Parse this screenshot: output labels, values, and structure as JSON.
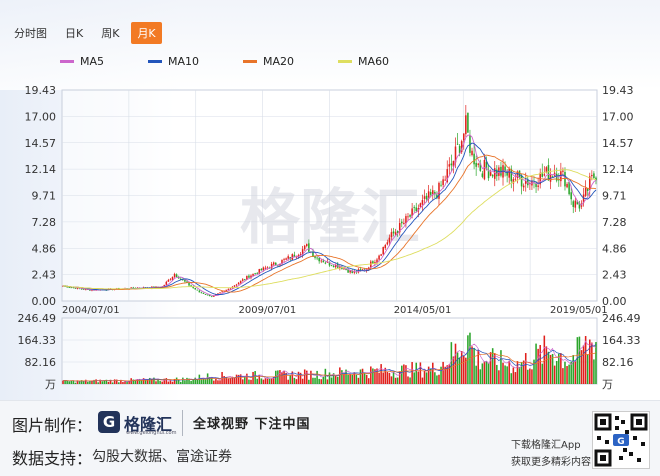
{
  "tabs": [
    {
      "label": "分时图",
      "active": false
    },
    {
      "label": "日K",
      "active": false
    },
    {
      "label": "周K",
      "active": false
    },
    {
      "label": "月K",
      "active": true
    }
  ],
  "legend": [
    {
      "label": "MA5",
      "color": "#cc66cc"
    },
    {
      "label": "MA10",
      "color": "#2255bb"
    },
    {
      "label": "MA20",
      "color": "#e8742a"
    },
    {
      "label": "MA60",
      "color": "#dede60"
    }
  ],
  "colors": {
    "up": "#e0201c",
    "down": "#2aa52a",
    "grid": "#d8dee8"
  },
  "watermark": "格隆汇",
  "chart_data": {
    "type": "candlestick",
    "price_axis": {
      "ticks": [
        "19.43",
        "17.00",
        "14.57",
        "12.14",
        "9.71",
        "7.28",
        "4.86",
        "2.43",
        "0.00"
      ],
      "ylim": [
        0,
        19.43
      ]
    },
    "volume_axis": {
      "ticks": [
        "246.49",
        "164.33",
        "82.16",
        "万"
      ],
      "ylim": [
        0,
        246.49
      ],
      "unit": "万"
    },
    "x_ticks": [
      "2004/07/01",
      "2009/07/01",
      "2014/05/01",
      "2019/05/01"
    ],
    "close_anchors": [
      [
        0,
        1.4
      ],
      [
        12,
        1.0
      ],
      [
        24,
        1.1
      ],
      [
        36,
        1.2
      ],
      [
        48,
        1.3
      ],
      [
        54,
        2.5
      ],
      [
        60,
        1.6
      ],
      [
        66,
        0.8
      ],
      [
        72,
        0.4
      ],
      [
        80,
        1.1
      ],
      [
        90,
        2.3
      ],
      [
        100,
        3.2
      ],
      [
        110,
        4.0
      ],
      [
        118,
        5.0
      ],
      [
        122,
        4.1
      ],
      [
        128,
        3.5
      ],
      [
        134,
        3.2
      ],
      [
        140,
        2.6
      ],
      [
        146,
        2.9
      ],
      [
        152,
        4.0
      ],
      [
        158,
        5.8
      ],
      [
        164,
        7.0
      ],
      [
        170,
        8.2
      ],
      [
        176,
        9.3
      ],
      [
        182,
        10.2
      ],
      [
        188,
        12.5
      ],
      [
        192,
        14.5
      ],
      [
        195,
        16.0
      ],
      [
        198,
        13.5
      ],
      [
        202,
        12.3
      ],
      [
        208,
        12.0
      ],
      [
        214,
        11.8
      ],
      [
        220,
        11.3
      ],
      [
        226,
        11.0
      ],
      [
        232,
        11.5
      ],
      [
        238,
        12.0
      ],
      [
        243,
        11.3
      ],
      [
        247,
        9.0
      ],
      [
        251,
        8.8
      ],
      [
        255,
        10.8
      ],
      [
        258,
        11.8
      ]
    ],
    "volume_anchors": [
      [
        0,
        12
      ],
      [
        60,
        22
      ],
      [
        70,
        35
      ],
      [
        120,
        45
      ],
      [
        150,
        60
      ],
      [
        180,
        70
      ],
      [
        190,
        150
      ],
      [
        196,
        230
      ],
      [
        200,
        120
      ],
      [
        220,
        90
      ],
      [
        236,
        160
      ],
      [
        245,
        110
      ],
      [
        258,
        210
      ]
    ],
    "n_months": 259
  },
  "footer": {
    "label1": "图片制作：",
    "label2": "数据支持：",
    "brand": "格隆汇",
    "brand_sub": "www.gelonghui.com",
    "slogan": "全球视野 下注中国",
    "source": "勾股大数据、富途证券",
    "download": "下载格隆汇App",
    "more": "获取更多精彩内容"
  }
}
